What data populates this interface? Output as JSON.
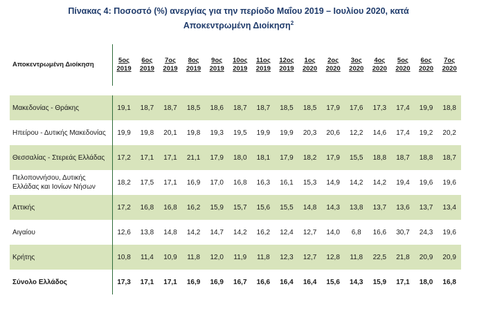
{
  "title": {
    "line1": "Πίνακας 4: Ποσοστό (%) ανεργίας για την περίοδο Μαΐου 2019 – Ιουλίου 2020, κατά",
    "line2": "Αποκεντρωμένη Διοίκηση",
    "footnote": "2"
  },
  "table": {
    "header_name": "Αποκεντρωμένη Διοίκηση",
    "months": [
      {
        "m": "5ος",
        "y": "2019"
      },
      {
        "m": "6ος",
        "y": "2019"
      },
      {
        "m": "7ος",
        "y": "2019"
      },
      {
        "m": "8ος",
        "y": "2019"
      },
      {
        "m": "9ος",
        "y": "2019"
      },
      {
        "m": "10ος",
        "y": "2019"
      },
      {
        "m": "11ος",
        "y": "2019"
      },
      {
        "m": "12ος",
        "y": "2019"
      },
      {
        "m": "1ος",
        "y": "2020"
      },
      {
        "m": "2ος",
        "y": "2020"
      },
      {
        "m": "3ος",
        "y": "2020"
      },
      {
        "m": "4ος",
        "y": "2020"
      },
      {
        "m": "5ος",
        "y": "2020"
      },
      {
        "m": "6ος",
        "y": "2020"
      },
      {
        "m": "7ος",
        "y": "2020"
      }
    ],
    "rows": [
      {
        "name": "Μακεδονίας - Θράκης",
        "values": [
          "19,1",
          "18,7",
          "18,7",
          "18,5",
          "18,6",
          "18,7",
          "18,7",
          "18,5",
          "18,5",
          "17,9",
          "17,6",
          "17,3",
          "17,4",
          "19,9",
          "18,8"
        ],
        "shaded": true
      },
      {
        "name": "Ηπείρου - Δυτικής Μακεδονίας",
        "values": [
          "19,9",
          "19,8",
          "20,1",
          "19,8",
          "19,3",
          "19,5",
          "19,9",
          "19,9",
          "20,3",
          "20,6",
          "12,2",
          "14,6",
          "17,4",
          "19,2",
          "20,2"
        ],
        "shaded": false
      },
      {
        "name": "Θεσσαλίας - Στερεάς Ελλάδας",
        "values": [
          "17,2",
          "17,1",
          "17,1",
          "21,1",
          "17,9",
          "18,0",
          "18,1",
          "17,9",
          "18,2",
          "17,9",
          "15,5",
          "18,8",
          "18,7",
          "18,8",
          "18,7"
        ],
        "shaded": true
      },
      {
        "name": "Πελοποννήσου, Δυτικής Ελλάδας και Ιονίων Νήσων",
        "values": [
          "18,2",
          "17,5",
          "17,1",
          "16,9",
          "17,0",
          "16,8",
          "16,3",
          "16,1",
          "15,3",
          "14,9",
          "14,2",
          "14,2",
          "19,4",
          "19,6",
          "19,6"
        ],
        "shaded": false
      },
      {
        "name": "Αττικής",
        "values": [
          "17,2",
          "16,8",
          "16,8",
          "16,2",
          "15,9",
          "15,7",
          "15,6",
          "15,5",
          "14,8",
          "14,3",
          "13,8",
          "13,7",
          "13,6",
          "13,7",
          "13,4"
        ],
        "shaded": true
      },
      {
        "name": "Αιγαίου",
        "values": [
          "12,6",
          "13,8",
          "14,8",
          "14,2",
          "14,7",
          "14,2",
          "16,2",
          "12,4",
          "12,7",
          "14,0",
          "6,8",
          "16,6",
          "30,7",
          "24,3",
          "19,6"
        ],
        "shaded": false
      },
      {
        "name": "Κρήτης",
        "values": [
          "10,8",
          "11,4",
          "10,9",
          "11,8",
          "12,0",
          "11,9",
          "11,8",
          "12,3",
          "12,7",
          "12,8",
          "11,8",
          "22,5",
          "21,8",
          "20,9",
          "20,9"
        ],
        "shaded": true
      },
      {
        "name": "Σύνολο Ελλάδος",
        "values": [
          "17,3",
          "17,1",
          "17,1",
          "16,9",
          "16,9",
          "16,7",
          "16,6",
          "16,4",
          "16,4",
          "15,6",
          "14,3",
          "15,9",
          "17,1",
          "18,0",
          "16,8"
        ],
        "shaded": false,
        "total": true
      }
    ]
  },
  "colors": {
    "title": "#1f3b6b",
    "shade": "#d8e4bc",
    "rule": "#2e6b3a"
  }
}
